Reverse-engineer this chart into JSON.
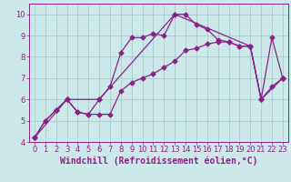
{
  "title": "",
  "xlabel": "Windchill (Refroidissement éolien,°C)",
  "ylabel": "",
  "bg_color": "#cce8e8",
  "line_color": "#882288",
  "grid_color": "#aacccc",
  "ylim": [
    4,
    10.5
  ],
  "xlim": [
    -0.5,
    23.5
  ],
  "yticks": [
    4,
    5,
    6,
    7,
    8,
    9,
    10
  ],
  "xticks": [
    0,
    1,
    2,
    3,
    4,
    5,
    6,
    7,
    8,
    9,
    10,
    11,
    12,
    13,
    14,
    15,
    16,
    17,
    18,
    19,
    20,
    21,
    22,
    23
  ],
  "series1_x": [
    0,
    1,
    2,
    3,
    4,
    5,
    6,
    7,
    8,
    9,
    10,
    11,
    12,
    13,
    14,
    15,
    16,
    17,
    18,
    19,
    20,
    21,
    22,
    23
  ],
  "series1_y": [
    4.2,
    5.0,
    5.5,
    6.0,
    5.4,
    5.3,
    5.3,
    5.3,
    6.4,
    6.8,
    7.0,
    7.2,
    7.5,
    7.8,
    8.3,
    8.4,
    8.6,
    8.7,
    8.7,
    8.5,
    8.5,
    6.0,
    6.6,
    7.0
  ],
  "series2_x": [
    0,
    1,
    2,
    3,
    4,
    5,
    6,
    7,
    8,
    9,
    10,
    11,
    12,
    13,
    14,
    15,
    16,
    17,
    18,
    19,
    20,
    21,
    22,
    23
  ],
  "series2_y": [
    4.2,
    5.0,
    5.5,
    6.0,
    5.4,
    5.3,
    6.0,
    6.6,
    8.2,
    8.9,
    8.9,
    9.1,
    9.0,
    10.0,
    10.0,
    9.5,
    9.3,
    8.8,
    8.7,
    8.5,
    8.5,
    6.0,
    8.9,
    7.0
  ],
  "series3_x": [
    0,
    3,
    6,
    13,
    20,
    21,
    23
  ],
  "series3_y": [
    4.2,
    6.0,
    6.0,
    10.0,
    8.5,
    6.0,
    7.0
  ],
  "marker": "D",
  "markersize": 2.5,
  "linewidth": 0.9,
  "xlabel_fontsize": 7.0,
  "tick_fontsize": 6.0,
  "tick_color": "#882288",
  "axis_color": "#882288"
}
